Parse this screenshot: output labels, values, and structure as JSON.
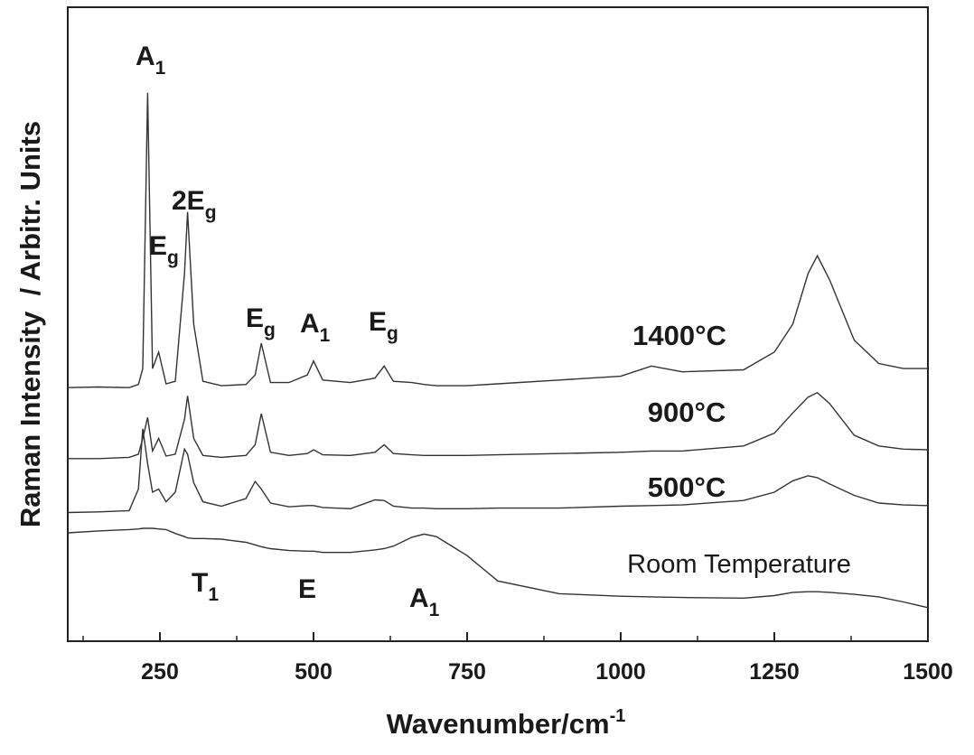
{
  "chart_data": {
    "type": "line",
    "xlabel": "Wavenumber/cm",
    "xlabel_superscript": "-1",
    "ylabel": "Raman Intensity  / Arbitr. Units",
    "xlim": [
      100,
      1500
    ],
    "ylim": [
      0,
      100
    ],
    "xticks": [
      250,
      500,
      750,
      1000,
      1250,
      1500
    ],
    "minor_xticks": [
      125,
      375,
      625,
      875,
      1125,
      1375
    ],
    "x": [
      100,
      150,
      200,
      215,
      222,
      230,
      238,
      248,
      260,
      275,
      290,
      295,
      305,
      320,
      350,
      390,
      405,
      415,
      430,
      460,
      490,
      500,
      515,
      560,
      600,
      615,
      630,
      660,
      680,
      700,
      750,
      800,
      900,
      1000,
      1050,
      1100,
      1200,
      1250,
      1280,
      1305,
      1320,
      1340,
      1380,
      1420,
      1460,
      1500
    ],
    "series": [
      {
        "name": "1400°C",
        "color": "#333333",
        "values": [
          40.0,
          40.1,
          40.0,
          40.5,
          43,
          86.5,
          43,
          45.6,
          40.6,
          41,
          58,
          67.7,
          50,
          41,
          40.3,
          40.5,
          42,
          47,
          40.8,
          40.8,
          42,
          44.2,
          41.2,
          40.8,
          41.5,
          43.4,
          41,
          40.8,
          40.5,
          40.3,
          40.3,
          40.6,
          41.2,
          41.8,
          43.4,
          42.5,
          42.8,
          45.6,
          50,
          58,
          60.8,
          57,
          47.5,
          43.8,
          43,
          43
        ]
      },
      {
        "name": "900°C",
        "color": "#333333",
        "values": [
          28.8,
          28.8,
          29,
          29.5,
          32,
          35.3,
          30,
          32,
          29.2,
          29.5,
          35,
          38.7,
          32,
          29.3,
          29,
          29.3,
          31,
          35.9,
          29.8,
          29.3,
          29.6,
          30.2,
          29.4,
          29.3,
          29.8,
          31,
          29.6,
          29.4,
          29.3,
          29.3,
          29.3,
          29.4,
          29.6,
          29.8,
          30,
          30,
          30.8,
          32.8,
          36,
          38.5,
          39.2,
          37.5,
          32.5,
          30.8,
          30.3,
          30.2
        ]
      },
      {
        "name": "500°C",
        "color": "#333333",
        "values": [
          20.3,
          20.4,
          20.6,
          24,
          33.5,
          28,
          23.5,
          24,
          22,
          23.5,
          30.3,
          29.5,
          25,
          22,
          21.3,
          22.5,
          25.2,
          24,
          21.8,
          21.2,
          21.4,
          21.4,
          21.1,
          20.9,
          22.3,
          22.2,
          21.3,
          21,
          21,
          20.9,
          20.9,
          21,
          21,
          21.3,
          21.4,
          21.5,
          22.2,
          23.5,
          25.3,
          26.1,
          25.8,
          24.8,
          23,
          21.8,
          21.5,
          21.4
        ]
      },
      {
        "name": "Room Temperature",
        "color": "#333333",
        "values": [
          17.1,
          17.4,
          17.6,
          17.7,
          17.8,
          17.8,
          17.8,
          17.7,
          17.6,
          17,
          16.5,
          16.3,
          16.2,
          16.2,
          16.1,
          15.6,
          15.2,
          14.9,
          14.6,
          14.3,
          14.2,
          14.2,
          14,
          14,
          14.4,
          14.6,
          15,
          16.4,
          16.9,
          16.5,
          13.5,
          9.5,
          7.5,
          7.1,
          7,
          6.9,
          6.8,
          7.2,
          7.7,
          7.8,
          7.8,
          7.7,
          7.4,
          7,
          6.2,
          5.3
        ]
      }
    ],
    "annotations": [
      {
        "text": "A",
        "sub": "1"
      },
      {
        "text": "E",
        "sub": "g"
      },
      {
        "text": "2E",
        "sub": "g"
      },
      {
        "text": "E",
        "sub": "g"
      },
      {
        "text": "A",
        "sub": "1"
      },
      {
        "text": "E",
        "sub": "g"
      },
      {
        "text": "T",
        "sub": "1"
      },
      {
        "text": "E"
      },
      {
        "text": "A",
        "sub": "1"
      }
    ]
  }
}
